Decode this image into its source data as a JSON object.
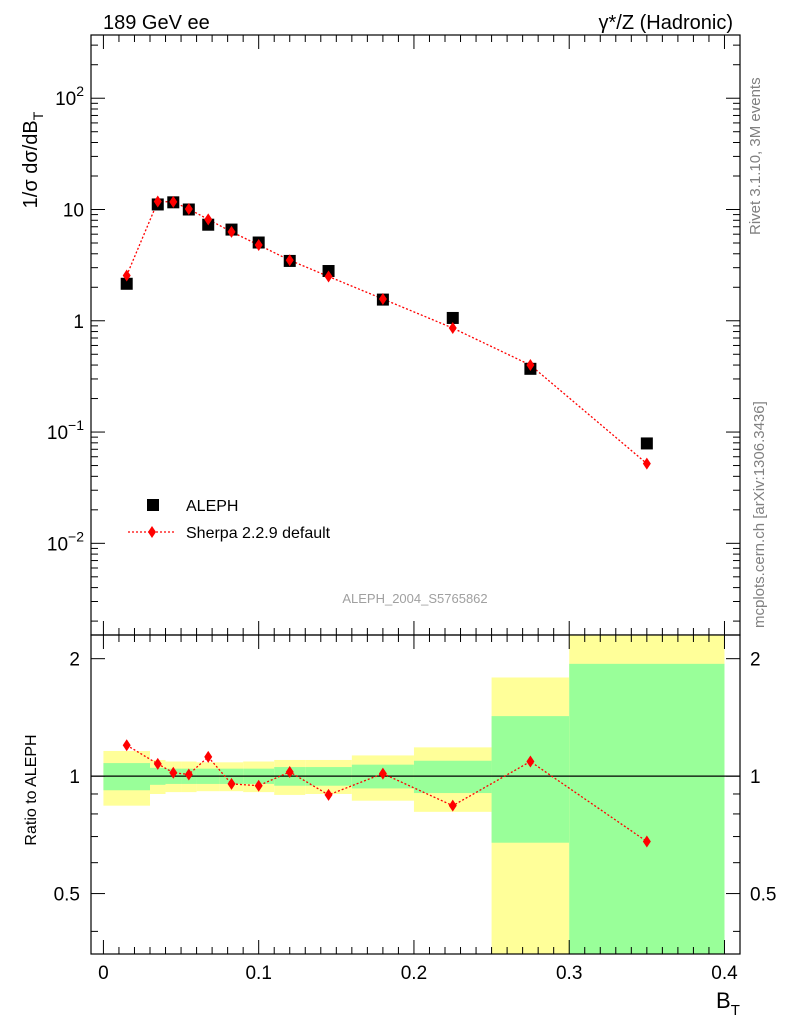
{
  "header": {
    "left": "189 GeV ee",
    "right": "γ*/Z (Hadronic)"
  },
  "side": {
    "rivet": "Rivet 3.1.10,  3M events",
    "mcplots": "mcplots.cern.ch [arXiv:1306.3436]"
  },
  "watermark": "ALEPH_2004_S5765862",
  "colors": {
    "data": "#000000",
    "mc": "#ff0000",
    "band_inner": "#99ff99",
    "band_outer": "#ffff99"
  },
  "chart_data": [
    {
      "type": "scatter",
      "panel": "main",
      "ylabel": "1/σ  dσ/dB_T",
      "yscale": "log",
      "ylim": [
        0.0015,
        370
      ],
      "xlim": [
        -0.008,
        0.41
      ],
      "y_tick_labels": [
        "10^-2",
        "10^-1",
        "1",
        "10",
        "10^2"
      ],
      "legend_placement": "lower-left",
      "series": [
        {
          "name": "ALEPH",
          "marker": "square",
          "x": [
            0.015,
            0.035,
            0.045,
            0.055,
            0.0675,
            0.0825,
            0.1,
            0.12,
            0.145,
            0.18,
            0.225,
            0.275,
            0.35
          ],
          "y": [
            2.15,
            11.1,
            11.6,
            10.0,
            7.3,
            6.6,
            5.05,
            3.45,
            2.8,
            1.55,
            1.06,
            0.37,
            0.079
          ]
        },
        {
          "name": "Sherpa 2.2.9 default",
          "marker": "diamond",
          "line": "dotted",
          "x": [
            0.015,
            0.035,
            0.045,
            0.055,
            0.0675,
            0.0825,
            0.1,
            0.12,
            0.145,
            0.18,
            0.225,
            0.275,
            0.35
          ],
          "y": [
            2.55,
            11.8,
            11.7,
            10.1,
            8.15,
            6.3,
            4.8,
            3.5,
            2.5,
            1.57,
            0.86,
            0.4,
            0.052
          ]
        }
      ]
    },
    {
      "type": "line",
      "panel": "ratio",
      "ylabel": "Ratio to ALEPH",
      "xlabel": "B_T",
      "ylim": [
        0.35,
        2.3
      ],
      "xlim": [
        -0.008,
        0.41
      ],
      "y_tick_labels": [
        "0.5",
        "1",
        "2"
      ],
      "x_tick_labels": [
        "0",
        "0.1",
        "0.2",
        "0.3",
        "0.4"
      ],
      "reference_line": 1,
      "bands": [
        {
          "x0": 0.0,
          "x1": 0.03,
          "inner": [
            0.92,
            1.08
          ],
          "outer": [
            0.84,
            1.16
          ]
        },
        {
          "x0": 0.03,
          "x1": 0.04,
          "inner": [
            0.95,
            1.05
          ],
          "outer": [
            0.9,
            1.1
          ]
        },
        {
          "x0": 0.04,
          "x1": 0.05,
          "inner": [
            0.955,
            1.045
          ],
          "outer": [
            0.91,
            1.09
          ]
        },
        {
          "x0": 0.05,
          "x1": 0.06,
          "inner": [
            0.955,
            1.045
          ],
          "outer": [
            0.91,
            1.09
          ]
        },
        {
          "x0": 0.06,
          "x1": 0.075,
          "inner": [
            0.955,
            1.045
          ],
          "outer": [
            0.915,
            1.085
          ]
        },
        {
          "x0": 0.075,
          "x1": 0.09,
          "inner": [
            0.955,
            1.045
          ],
          "outer": [
            0.915,
            1.085
          ]
        },
        {
          "x0": 0.09,
          "x1": 0.11,
          "inner": [
            0.955,
            1.045
          ],
          "outer": [
            0.91,
            1.09
          ]
        },
        {
          "x0": 0.11,
          "x1": 0.13,
          "inner": [
            0.945,
            1.055
          ],
          "outer": [
            0.895,
            1.1
          ]
        },
        {
          "x0": 0.13,
          "x1": 0.16,
          "inner": [
            0.945,
            1.055
          ],
          "outer": [
            0.9,
            1.1
          ]
        },
        {
          "x0": 0.16,
          "x1": 0.2,
          "inner": [
            0.93,
            1.07
          ],
          "outer": [
            0.865,
            1.13
          ]
        },
        {
          "x0": 0.2,
          "x1": 0.25,
          "inner": [
            0.905,
            1.095
          ],
          "outer": [
            0.81,
            1.185
          ]
        },
        {
          "x0": 0.25,
          "x1": 0.3,
          "inner": [
            0.675,
            1.425
          ],
          "outer": [
            0.35,
            1.79
          ]
        },
        {
          "x0": 0.3,
          "x1": 0.4,
          "inner": [
            0.35,
            1.94
          ],
          "outer": [
            0.35,
            2.3
          ]
        }
      ],
      "series": [
        {
          "name": "Sherpa 2.2.9 default",
          "x": [
            0.015,
            0.035,
            0.045,
            0.055,
            0.0675,
            0.0825,
            0.1,
            0.12,
            0.145,
            0.18,
            0.225,
            0.275,
            0.35
          ],
          "y": [
            1.2,
            1.075,
            1.02,
            1.01,
            1.12,
            0.955,
            0.945,
            1.025,
            0.895,
            1.015,
            0.84,
            1.09,
            0.68
          ]
        }
      ]
    }
  ]
}
